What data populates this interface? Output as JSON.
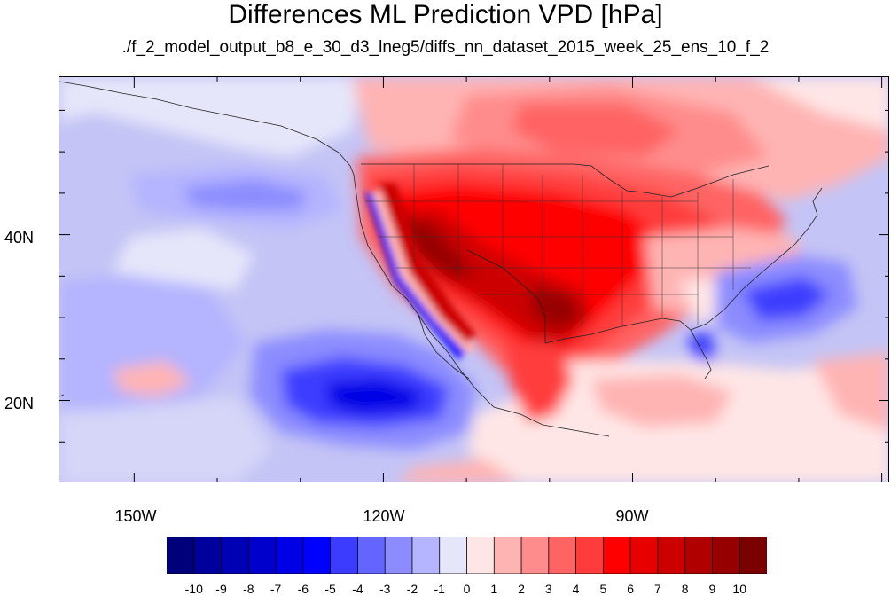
{
  "title": "Differences ML Prediction VPD [hPa]",
  "subtitle": "./f_2_model_output_b8_e_30_d3_lneg5/diffs_nn_dataset_2015_week_25_ens_10_f_2",
  "axes": {
    "lat_ticks": [
      {
        "label": "40N",
        "value": 40
      },
      {
        "label": "20N",
        "value": 20
      }
    ],
    "lon_ticks": [
      {
        "label": "150W",
        "value": -150
      },
      {
        "label": "120W",
        "value": -120
      },
      {
        "label": "90W",
        "value": -90
      }
    ],
    "lon_range": [
      -159,
      -59
    ],
    "lat_range": [
      10,
      59
    ]
  },
  "colorbar": {
    "labels": [
      "-10",
      "-9",
      "-8",
      "-7",
      "-6",
      "-5",
      "-4",
      "-3",
      "-2",
      "-1",
      "0",
      "1",
      "2",
      "3",
      "4",
      "5",
      "6",
      "7",
      "8",
      "9",
      "10"
    ],
    "colors": [
      "#00007a",
      "#00009c",
      "#0000b5",
      "#0000cc",
      "#0000e6",
      "#0000ff",
      "#3c3cff",
      "#6464ff",
      "#8c8cff",
      "#b4b4ff",
      "#e6e6fa",
      "#ffe6e6",
      "#ffb4b4",
      "#ff8c8c",
      "#ff6464",
      "#ff3c3c",
      "#ff0000",
      "#e60000",
      "#cc0000",
      "#b00000",
      "#960000",
      "#7a0000"
    ]
  }
}
